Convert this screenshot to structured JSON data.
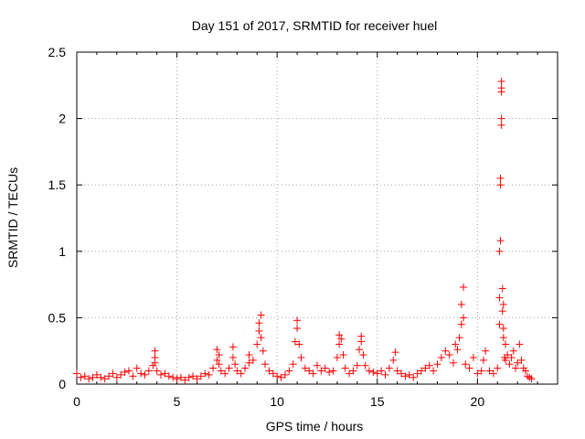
{
  "chart_data": {
    "type": "scatter",
    "title": "Day 151 of 2017, SRMTID for receiver huel",
    "xlabel": "GPS time / hours",
    "ylabel": "SRMTID / TECUs",
    "xlim": [
      0,
      24
    ],
    "ylim": [
      0,
      2.5
    ],
    "xticks": [
      0,
      5,
      10,
      15,
      20
    ],
    "xtick_labels": [
      "0",
      "5",
      "10",
      "15",
      "20"
    ],
    "yticks": [
      0,
      0.5,
      1,
      1.5,
      2,
      2.5
    ],
    "ytick_labels": [
      "0",
      "0.5",
      "1",
      "1.5",
      "2",
      "2.5"
    ],
    "grid": true,
    "marker": "+",
    "color": "#ff0000",
    "series": [
      {
        "name": "SRMTID",
        "x": [
          0.0,
          0.2,
          0.4,
          0.6,
          0.8,
          1.0,
          1.2,
          1.4,
          1.6,
          1.8,
          2.0,
          2.2,
          2.4,
          2.6,
          2.8,
          3.0,
          3.2,
          3.4,
          3.6,
          3.8,
          3.9,
          3.9,
          3.9,
          4.0,
          4.2,
          4.4,
          4.6,
          4.8,
          5.0,
          5.2,
          5.4,
          5.6,
          5.8,
          6.0,
          6.2,
          6.4,
          6.6,
          6.8,
          7.0,
          7.0,
          7.1,
          7.1,
          7.2,
          7.4,
          7.6,
          7.8,
          7.8,
          7.9,
          8.0,
          8.2,
          8.4,
          8.6,
          8.6,
          8.8,
          9.0,
          9.1,
          9.1,
          9.2,
          9.2,
          9.3,
          9.4,
          9.6,
          9.8,
          10.0,
          10.2,
          10.4,
          10.6,
          10.8,
          10.9,
          11.0,
          11.0,
          11.1,
          11.2,
          11.4,
          11.6,
          11.8,
          12.0,
          12.2,
          12.4,
          12.6,
          12.8,
          13.0,
          13.1,
          13.1,
          13.2,
          13.3,
          13.4,
          13.6,
          13.8,
          14.0,
          14.1,
          14.2,
          14.2,
          14.3,
          14.4,
          14.6,
          14.8,
          15.0,
          15.2,
          15.4,
          15.6,
          15.8,
          15.9,
          16.0,
          16.2,
          16.4,
          16.6,
          16.8,
          17.0,
          17.2,
          17.4,
          17.6,
          17.8,
          18.0,
          18.2,
          18.4,
          18.6,
          18.8,
          18.9,
          19.0,
          19.1,
          19.2,
          19.2,
          19.3,
          19.3,
          19.4,
          19.6,
          19.8,
          20.0,
          20.2,
          20.3,
          20.4,
          20.6,
          20.8,
          21.0,
          21.1,
          21.1,
          21.1,
          21.15,
          21.15,
          21.15,
          21.2,
          21.2,
          21.2,
          21.2,
          21.2,
          21.25,
          21.25,
          21.3,
          21.3,
          21.3,
          21.35,
          21.4,
          21.4,
          21.5,
          21.6,
          21.7,
          21.8,
          21.9,
          22.0,
          22.1,
          22.2,
          22.3,
          22.4,
          22.5,
          22.6,
          22.7
        ],
        "y": [
          0.08,
          0.05,
          0.06,
          0.04,
          0.05,
          0.07,
          0.05,
          0.04,
          0.06,
          0.08,
          0.05,
          0.07,
          0.09,
          0.1,
          0.06,
          0.12,
          0.08,
          0.07,
          0.1,
          0.14,
          0.2,
          0.25,
          0.16,
          0.1,
          0.07,
          0.08,
          0.06,
          0.05,
          0.04,
          0.05,
          0.03,
          0.05,
          0.06,
          0.04,
          0.06,
          0.08,
          0.07,
          0.12,
          0.18,
          0.26,
          0.22,
          0.15,
          0.1,
          0.08,
          0.12,
          0.2,
          0.28,
          0.15,
          0.1,
          0.08,
          0.12,
          0.22,
          0.16,
          0.18,
          0.3,
          0.4,
          0.46,
          0.52,
          0.35,
          0.25,
          0.15,
          0.1,
          0.08,
          0.06,
          0.05,
          0.07,
          0.1,
          0.15,
          0.32,
          0.42,
          0.48,
          0.3,
          0.2,
          0.12,
          0.1,
          0.08,
          0.14,
          0.1,
          0.12,
          0.09,
          0.1,
          0.2,
          0.3,
          0.37,
          0.34,
          0.22,
          0.12,
          0.08,
          0.1,
          0.14,
          0.26,
          0.36,
          0.32,
          0.22,
          0.14,
          0.1,
          0.09,
          0.08,
          0.1,
          0.07,
          0.12,
          0.18,
          0.24,
          0.1,
          0.08,
          0.06,
          0.07,
          0.05,
          0.08,
          0.1,
          0.12,
          0.14,
          0.1,
          0.15,
          0.2,
          0.25,
          0.22,
          0.16,
          0.3,
          0.26,
          0.35,
          0.45,
          0.6,
          0.73,
          0.5,
          0.15,
          0.12,
          0.2,
          0.08,
          0.1,
          0.18,
          0.25,
          0.1,
          0.08,
          0.12,
          0.45,
          0.65,
          1.0,
          1.08,
          1.5,
          1.55,
          1.95,
          2.0,
          2.2,
          2.23,
          2.28,
          0.55,
          0.72,
          0.6,
          0.42,
          0.35,
          0.2,
          0.18,
          0.3,
          0.22,
          0.15,
          0.2,
          0.25,
          0.12,
          0.16,
          0.3,
          0.18,
          0.12,
          0.1,
          0.06,
          0.05,
          0.04
        ]
      }
    ]
  }
}
